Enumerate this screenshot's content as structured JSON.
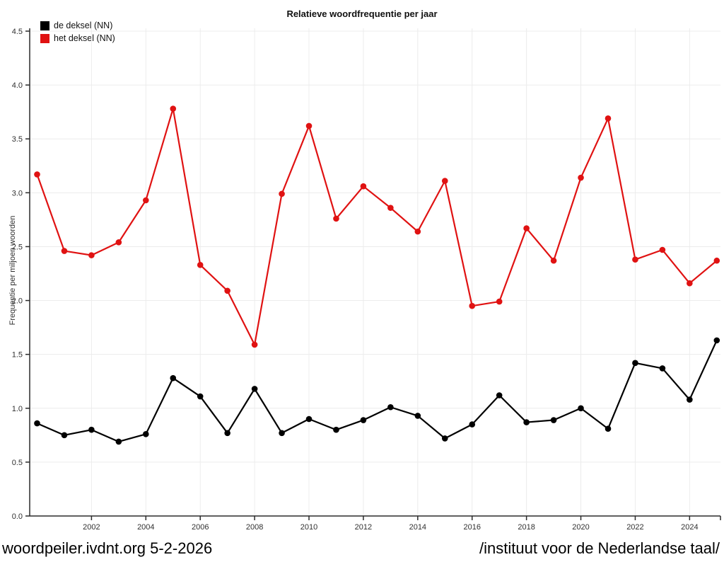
{
  "title": "Relatieve woordfrequentie per jaar",
  "y_axis_title": "Frequentie per miljoen woorden",
  "legend": [
    {
      "label": "de deksel (NN)",
      "color": "#000000"
    },
    {
      "label": "het deksel (NN)",
      "color": "#e01212"
    }
  ],
  "footer": {
    "left": "woordpeiler.ivdnt.org 5-2-2026",
    "right": "/instituut voor de Nederlandse taal/"
  },
  "chart_data": {
    "type": "line",
    "title": "Relatieve woordfrequentie per jaar",
    "xlabel": "",
    "ylabel": "Frequentie per miljoen woorden",
    "x": [
      2000,
      2001,
      2002,
      2003,
      2004,
      2005,
      2006,
      2007,
      2008,
      2009,
      2010,
      2011,
      2012,
      2013,
      2014,
      2015,
      2016,
      2017,
      2018,
      2019,
      2020,
      2021,
      2022,
      2023,
      2024,
      2025
    ],
    "series": [
      {
        "name": "de deksel (NN)",
        "color": "#000000",
        "values": [
          0.86,
          0.75,
          0.8,
          0.69,
          0.76,
          1.28,
          1.11,
          0.77,
          1.18,
          0.77,
          0.9,
          0.8,
          0.89,
          1.01,
          0.93,
          0.72,
          0.85,
          1.12,
          0.87,
          0.89,
          1.0,
          0.81,
          1.42,
          1.37,
          1.08,
          1.63
        ]
      },
      {
        "name": "het deksel (NN)",
        "color": "#e01212",
        "values": [
          3.17,
          2.46,
          2.42,
          2.54,
          2.93,
          3.78,
          2.33,
          2.09,
          1.59,
          2.99,
          3.62,
          2.76,
          3.06,
          2.86,
          2.64,
          3.11,
          1.95,
          1.99,
          2.67,
          2.37,
          3.14,
          3.69,
          2.38,
          2.47,
          2.16,
          2.37
        ]
      }
    ],
    "ylim": [
      0,
      4.5
    ],
    "ytick_step": 0.5,
    "xticks": [
      2002,
      2004,
      2006,
      2008,
      2010,
      2012,
      2014,
      2016,
      2018,
      2020,
      2022,
      2024
    ],
    "grid": true,
    "legend_position": "top-left",
    "marker": "circle"
  },
  "colors": {
    "grid": "#ececec",
    "axis": "#2b2b2b",
    "tick_label": "#303030"
  }
}
